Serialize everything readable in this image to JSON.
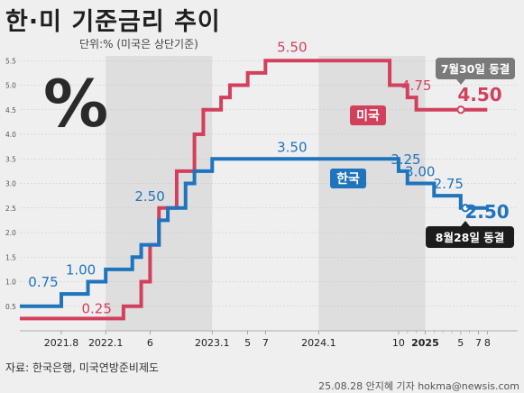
{
  "header": {
    "title": "한·미 기준금리 추이",
    "unit_note": "단위:% (미국은 상단기준)"
  },
  "footer": {
    "source": "자료: 한국은행, 미국연방준비제도",
    "credit": "25.08.28 안지혜 기자 hokma@newsis.com"
  },
  "chart_data": {
    "type": "line",
    "step": true,
    "x_tick_labels": [
      "2021.8",
      "2022.1",
      "6",
      "2023.1",
      "5",
      "7",
      "2024.1",
      "10",
      "2025",
      "5",
      "7",
      "8"
    ],
    "bold_x_ticks": [
      "2025"
    ],
    "ylim": [
      0,
      5.6
    ],
    "y_ticks": [
      "0.5",
      "1.0",
      "1.5",
      "2.0",
      "2.5",
      "3.0",
      "3.5",
      "4.0",
      "4.5",
      "5.0",
      "5.5"
    ],
    "grid": true,
    "series": [
      {
        "name": "미국",
        "color": "#d2405c",
        "steps": [
          {
            "date": "2021-07",
            "value": 0.25
          },
          {
            "date": "2022-03",
            "value": 0.5
          },
          {
            "date": "2022-05",
            "value": 1.0
          },
          {
            "date": "2022-06",
            "value": 1.75
          },
          {
            "date": "2022-07",
            "value": 2.5
          },
          {
            "date": "2022-09",
            "value": 3.25
          },
          {
            "date": "2022-11",
            "value": 4.0
          },
          {
            "date": "2022-12",
            "value": 4.5
          },
          {
            "date": "2023-02",
            "value": 4.75
          },
          {
            "date": "2023-03",
            "value": 5.0
          },
          {
            "date": "2023-05",
            "value": 5.25
          },
          {
            "date": "2023-07",
            "value": 5.5
          },
          {
            "date": "2024-09",
            "value": 5.0
          },
          {
            "date": "2024-11",
            "value": 4.75
          },
          {
            "date": "2024-12",
            "value": 4.5
          },
          {
            "date": "2025-08",
            "value": 4.5
          }
        ]
      },
      {
        "name": "한국",
        "color": "#1f74bd",
        "steps": [
          {
            "date": "2021-07",
            "value": 0.5
          },
          {
            "date": "2021-08",
            "value": 0.75
          },
          {
            "date": "2021-11",
            "value": 1.0
          },
          {
            "date": "2022-01",
            "value": 1.25
          },
          {
            "date": "2022-04",
            "value": 1.5
          },
          {
            "date": "2022-05",
            "value": 1.75
          },
          {
            "date": "2022-07",
            "value": 2.25
          },
          {
            "date": "2022-08",
            "value": 2.5
          },
          {
            "date": "2022-10",
            "value": 3.0
          },
          {
            "date": "2022-11",
            "value": 3.25
          },
          {
            "date": "2023-01",
            "value": 3.5
          },
          {
            "date": "2024-10",
            "value": 3.25
          },
          {
            "date": "2024-11",
            "value": 3.0
          },
          {
            "date": "2025-02",
            "value": 2.75
          },
          {
            "date": "2025-05",
            "value": 2.5
          },
          {
            "date": "2025-08",
            "value": 2.5
          }
        ]
      }
    ],
    "value_labels": [
      {
        "series": "한국",
        "date": "2021-08",
        "text": "0.75"
      },
      {
        "series": "한국",
        "date": "2021-11",
        "text": "1.00"
      },
      {
        "series": "미국",
        "date": "2022-01",
        "text": "0.25"
      },
      {
        "series": "한국",
        "date": "2022-08",
        "text": "2.50"
      },
      {
        "series": "한국",
        "date": "2023-10",
        "text": "3.50"
      },
      {
        "series": "미국",
        "date": "2023-10",
        "text": "5.50"
      },
      {
        "series": "미국",
        "date": "2024-11",
        "text": "4.75"
      },
      {
        "series": "한국",
        "date": "2024-10",
        "text": "3.25"
      },
      {
        "series": "한국",
        "date": "2024-11",
        "text": "3.00"
      },
      {
        "series": "한국",
        "date": "2025-02",
        "text": "2.75"
      }
    ],
    "series_tags": [
      {
        "series": "미국",
        "text": "미국",
        "color": "#d2405c"
      },
      {
        "series": "한국",
        "text": "한국",
        "color": "#1f74bd"
      }
    ],
    "callouts": [
      {
        "series": "미국",
        "value_text": "4.50",
        "note": "7월30일 동결",
        "note_color": "#7a7a7a"
      },
      {
        "series": "한국",
        "value_text": "2.50",
        "note": "8월28일 동결",
        "note_color": "#1c1c1c"
      }
    ],
    "decor_icon": "percent-icon",
    "decor_icon_text": "%"
  }
}
